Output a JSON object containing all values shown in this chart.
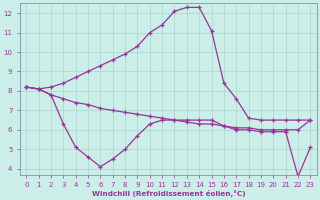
{
  "xlabel": "Windchill (Refroidissement éolien,°C)",
  "bg_color": "#cceee8",
  "grid_color": "#aad4ce",
  "line_color": "#993399",
  "upper": [
    8.2,
    8.1,
    8.2,
    8.4,
    8.7,
    9.0,
    9.3,
    9.6,
    9.9,
    10.3,
    11.0,
    11.4,
    12.1,
    12.3,
    12.3,
    11.1,
    8.4,
    7.6,
    6.6,
    6.5,
    6.5,
    6.5,
    6.5,
    6.5
  ],
  "middle": [
    8.2,
    8.1,
    7.8,
    7.6,
    7.4,
    7.3,
    7.1,
    7.0,
    6.9,
    6.8,
    6.7,
    6.6,
    6.5,
    6.4,
    6.3,
    6.3,
    6.2,
    6.1,
    6.1,
    6.0,
    6.0,
    6.0,
    6.0,
    6.5
  ],
  "lower": [
    8.2,
    8.1,
    7.8,
    6.3,
    5.1,
    4.6,
    4.1,
    4.5,
    5.0,
    5.7,
    6.3,
    6.5,
    6.5,
    6.5,
    6.5,
    6.5,
    6.2,
    6.0,
    6.0,
    5.9,
    5.9,
    5.9,
    3.6,
    5.1
  ],
  "xmin": 0,
  "xmax": 23,
  "ymin": 4,
  "ymax": 12,
  "yticks": [
    4,
    5,
    6,
    7,
    8,
    9,
    10,
    11,
    12
  ],
  "xticks": [
    0,
    1,
    2,
    3,
    4,
    5,
    6,
    7,
    8,
    9,
    10,
    11,
    12,
    13,
    14,
    15,
    16,
    17,
    18,
    19,
    20,
    21,
    22,
    23
  ]
}
